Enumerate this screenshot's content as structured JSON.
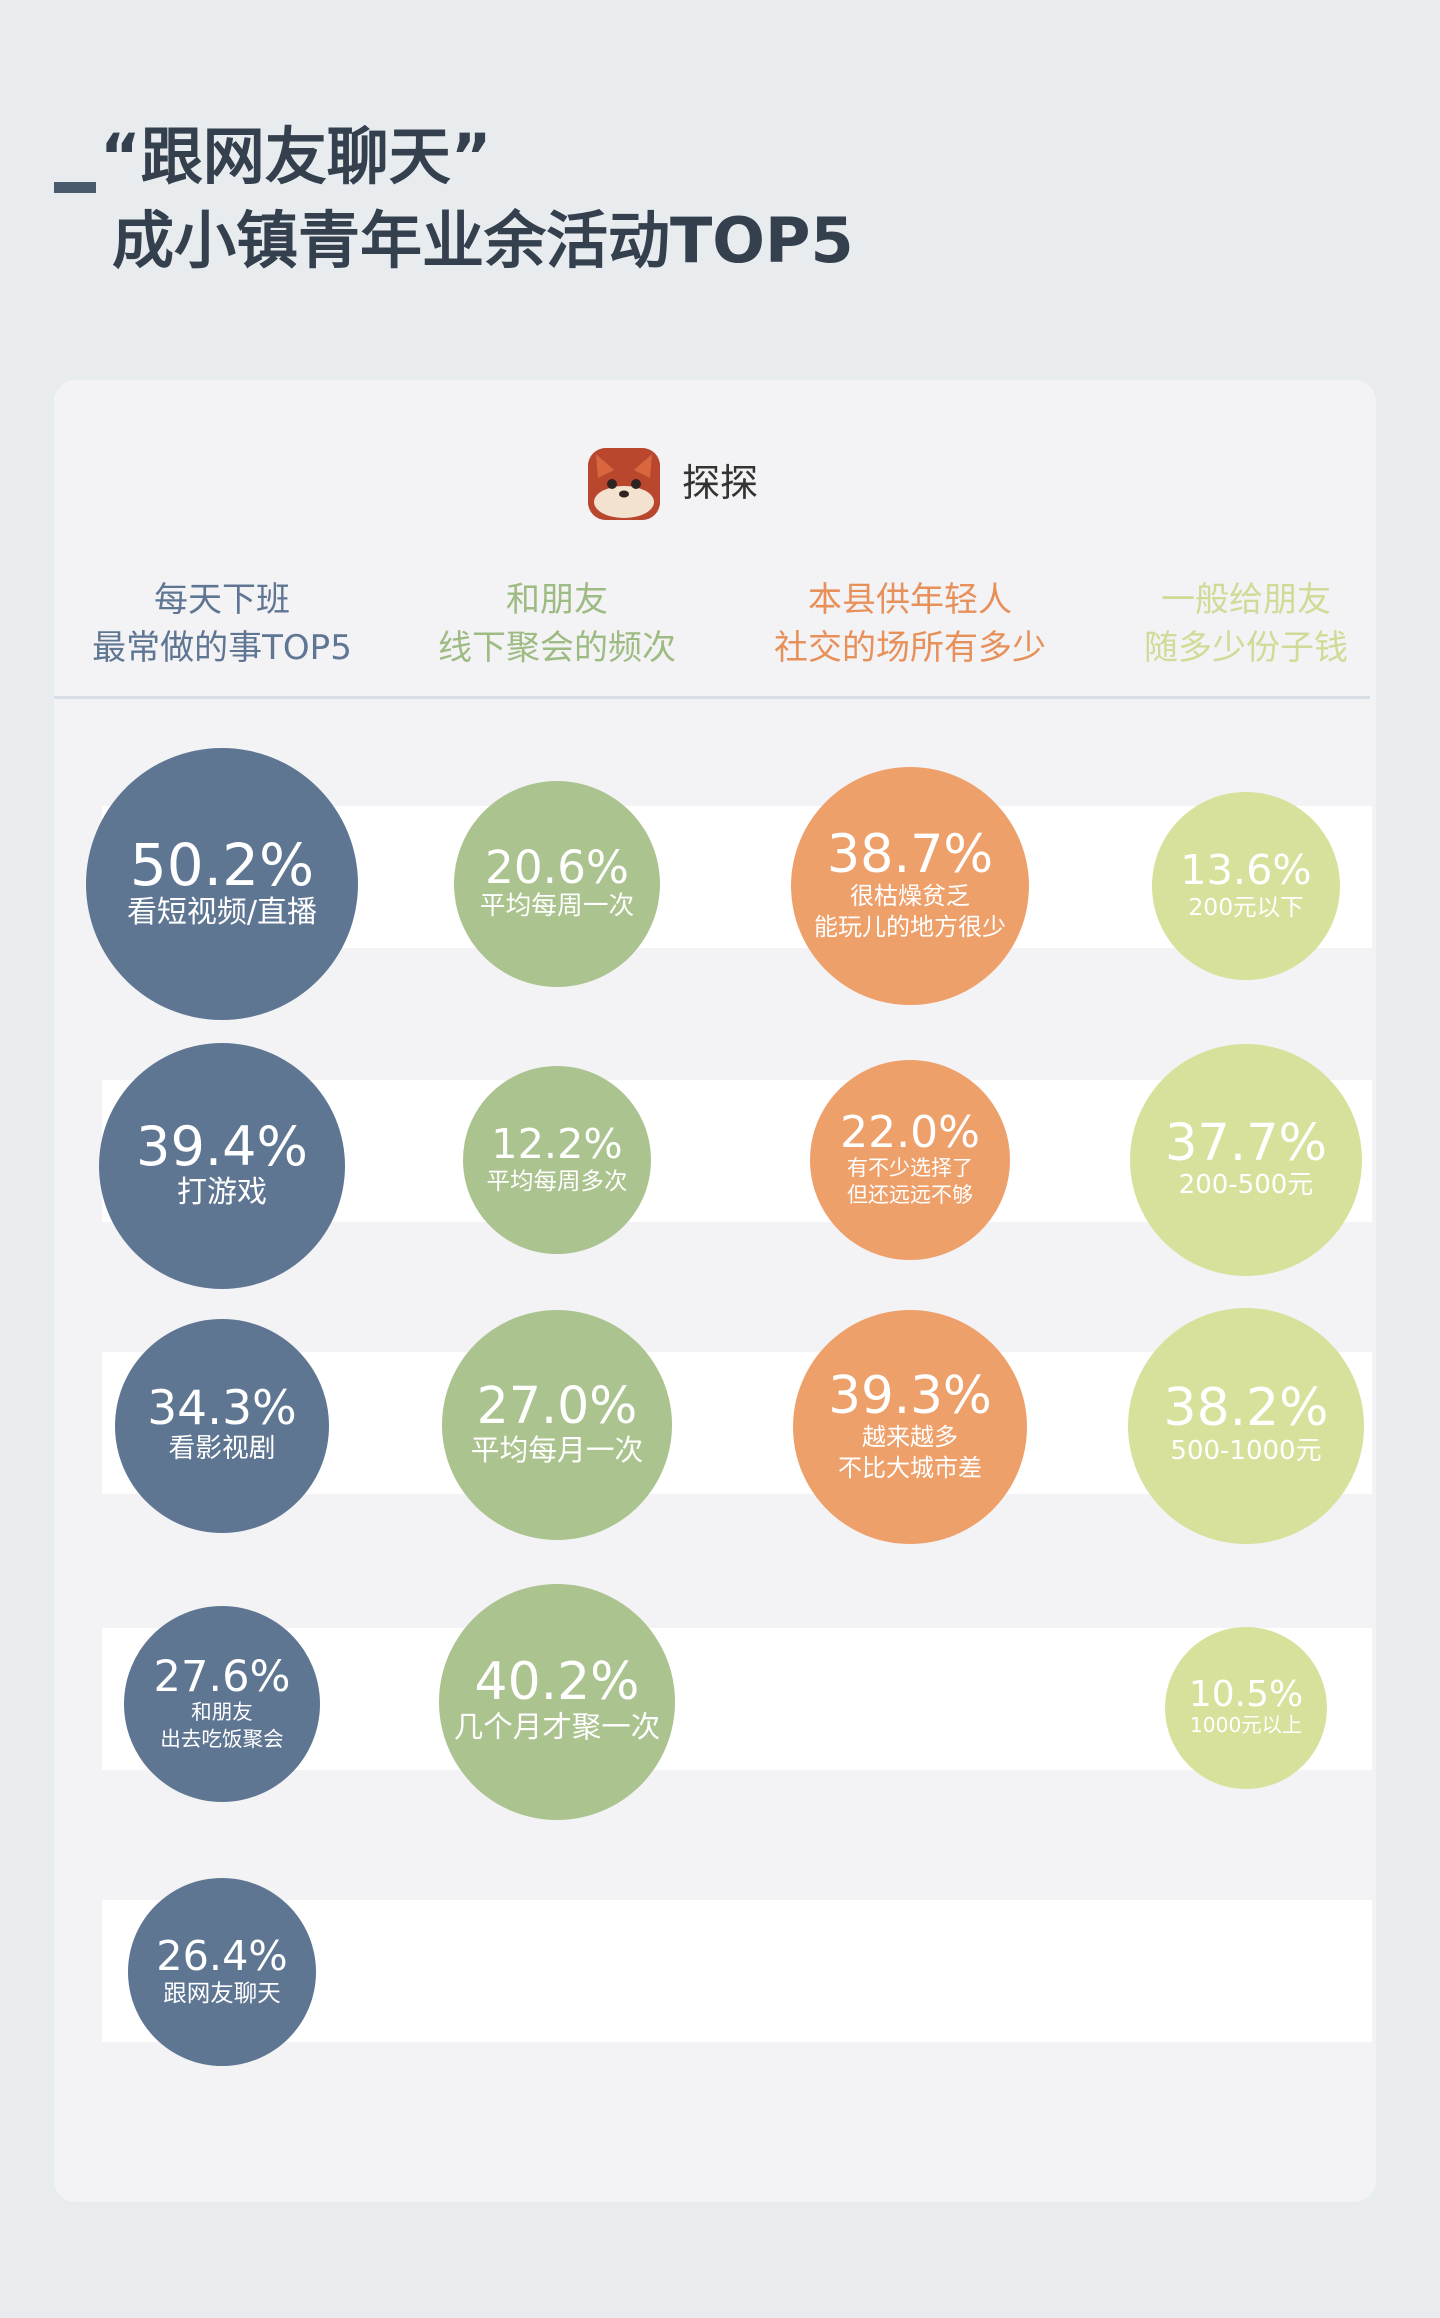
{
  "title": {
    "line1": "“跟网友聊天”",
    "line2": "成小镇青年业余活动TOP5"
  },
  "brand": {
    "name": "探探",
    "icon": "fox-logo-icon"
  },
  "colors": {
    "blue": "#5f7693",
    "green": "#abc38f",
    "orange": "#eea06b",
    "lime": "#d7e19b",
    "title": "#34404d"
  },
  "chart_data": [
    {
      "type": "bubble",
      "title": "每天下班\n最常做的事TOP5",
      "title_lines": [
        "每天下班",
        "最常做的事TOP5"
      ],
      "color": "#5f7693",
      "categories": [
        "看短视频/直播",
        "打游戏",
        "看影视剧",
        "和朋友\n出去吃饭聚会",
        "跟网友聊天"
      ],
      "values": [
        50.2,
        39.4,
        34.3,
        27.6,
        26.4
      ],
      "unit": "%"
    },
    {
      "type": "bubble",
      "title": "和朋友\n线下聚会的频次",
      "title_lines": [
        "和朋友",
        "线下聚会的频次"
      ],
      "color": "#abc38f",
      "categories": [
        "平均每周一次",
        "平均每周多次",
        "平均每月一次",
        "几个月才聚一次"
      ],
      "values": [
        20.6,
        12.2,
        27.0,
        40.2
      ],
      "unit": "%"
    },
    {
      "type": "bubble",
      "title": "本县供年轻人\n社交的场所有多少",
      "title_lines": [
        "本县供年轻人",
        "社交的场所有多少"
      ],
      "color": "#eea06b",
      "categories": [
        "很枯燥贫乏\n能玩儿的地方很少",
        "有不少选择了\n但还远远不够",
        "越来越多\n不比大城市差"
      ],
      "values": [
        38.7,
        22.0,
        39.3
      ],
      "unit": "%"
    },
    {
      "type": "bubble",
      "title": "一般给朋友\n随多少份子钱",
      "title_lines": [
        "一般给朋友",
        "随多少份子钱"
      ],
      "color": "#d7e19b",
      "categories": [
        "200元以下",
        "200-500元",
        "500-1000元",
        "1000元以上"
      ],
      "values": [
        13.6,
        37.7,
        38.2,
        10.5
      ],
      "unit": "%"
    }
  ]
}
